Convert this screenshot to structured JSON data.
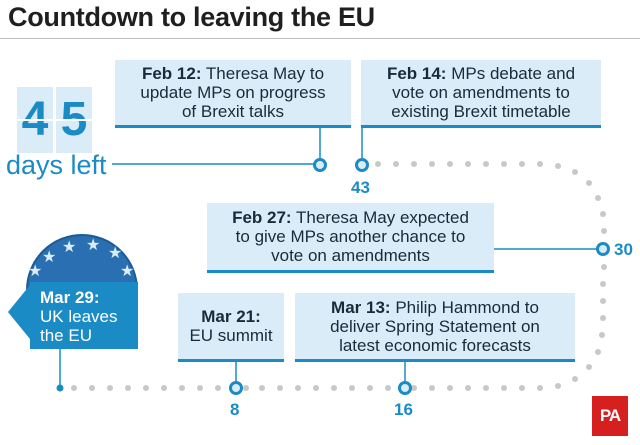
{
  "title": "Countdown to leaving the EU",
  "countdown": {
    "digit_1": "4",
    "digit_2": "5",
    "days_left_label": "days left"
  },
  "events": [
    {
      "date": "Feb 12:",
      "line_1": "Theresa May to",
      "line_2": "update MPs on progress",
      "line_3": "of Brexit talks"
    },
    {
      "date": "Feb 14:",
      "line_1": "MPs debate and",
      "line_2": "vote on amendments to",
      "line_3": "existing Brexit timetable",
      "days_remaining": "43"
    },
    {
      "date": "Feb 27:",
      "line_1": "Theresa May expected",
      "line_2": "to give MPs another chance to",
      "line_3": "vote on amendments",
      "days_remaining": "30"
    },
    {
      "date": "Mar 13:",
      "line_1": "Philip Hammond to",
      "line_2": "deliver Spring Statement on",
      "line_3": "latest economic forecasts",
      "days_remaining": "16"
    },
    {
      "date": "Mar 21:",
      "line_1": "EU summit",
      "days_remaining": "8"
    }
  ],
  "final_event": {
    "date": "Mar 29:",
    "line_1": "UK leaves",
    "line_2": "the EU"
  },
  "logo_text": "PA",
  "colors": {
    "accent": "#1b8bc5",
    "box_fill": "#d9ecf7",
    "dots": "#c8c8c8",
    "logo": "#d6201f",
    "flag_blue": "#2a6fb1"
  }
}
